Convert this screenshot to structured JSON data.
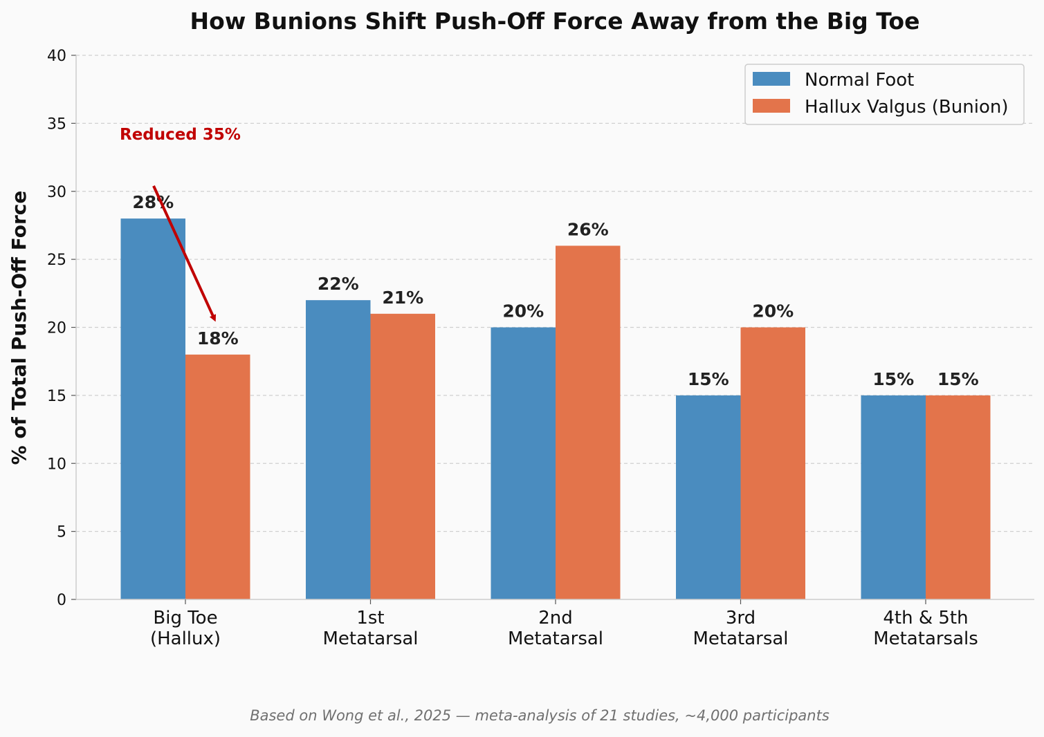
{
  "chart_data": {
    "type": "bar",
    "title": "How Bunions Shift Push-Off Force Away from the Big Toe",
    "ylabel": "% of Total Push-Off Force",
    "xlabel": "",
    "ylim": [
      0,
      40
    ],
    "yticks": [
      "0",
      "5",
      "10",
      "15",
      "20",
      "25",
      "30",
      "35",
      "40"
    ],
    "ytick_values": [
      0,
      5,
      10,
      15,
      20,
      25,
      30,
      35,
      40
    ],
    "grid": true,
    "legend_position": "top-right",
    "categories": [
      [
        "Big Toe",
        "(Hallux)"
      ],
      [
        "1st",
        "Metatarsal"
      ],
      [
        "2nd",
        "Metatarsal"
      ],
      [
        "3rd",
        "Metatarsal"
      ],
      [
        "4th & 5th",
        "Metatarsals"
      ]
    ],
    "series": [
      {
        "name": "Normal Foot",
        "color": "#4a8cbf",
        "values": [
          28,
          22,
          20,
          15,
          15
        ],
        "labels": [
          "28%",
          "22%",
          "20%",
          "15%",
          "15%"
        ]
      },
      {
        "name": "Hallux Valgus (Bunion)",
        "color": "#e3744b",
        "values": [
          18,
          21,
          26,
          20,
          15
        ],
        "labels": [
          "18%",
          "21%",
          "26%",
          "20%",
          "15%"
        ]
      }
    ],
    "annotation": {
      "text": "Reduced 35%",
      "color": "#c00000",
      "arrow_from": {
        "category": 0,
        "value": 30.4
      },
      "arrow_to": {
        "category": 0,
        "value": 20.6
      }
    },
    "footnote": "Based on Wong et al., 2025 — meta-analysis of 21 studies, ~4,000 participants"
  }
}
